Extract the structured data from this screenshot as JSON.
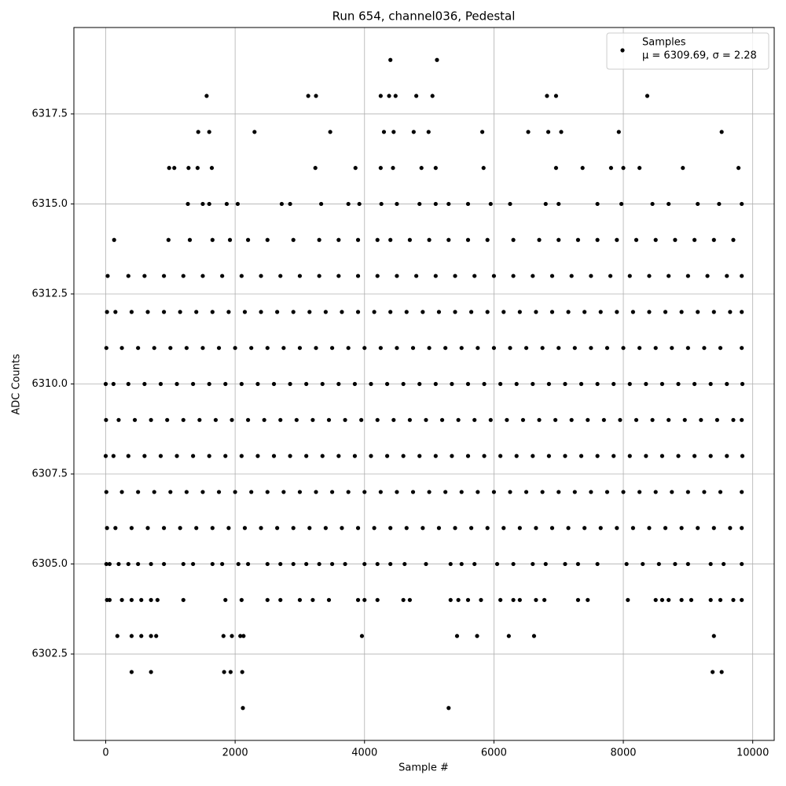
{
  "chart_data": {
    "type": "scatter",
    "title": "Run 654, channel036, Pedestal",
    "xlabel": "Sample #",
    "ylabel": "ADC Counts",
    "xlim": [
      -492,
      10332
    ],
    "ylim": [
      6300.1,
      6319.9
    ],
    "xticks": [
      0,
      2000,
      4000,
      6000,
      8000,
      10000
    ],
    "yticks": [
      6302.5,
      {
        "value": 6305,
        "label": "6305.0"
      },
      6307.5,
      {
        "value": 6310,
        "label": "6310.0"
      },
      6312.5,
      {
        "value": 6315,
        "label": "6315.0"
      },
      6317.5
    ],
    "grid": true,
    "legend": "upper right",
    "legend_note": "μ = 6309.69, σ = 2.28",
    "x": [
      4400,
      5120,
      1560,
      3130,
      3250,
      4250,
      4380,
      4480,
      4800,
      5050,
      6820,
      6960,
      8370,
      1430,
      1600,
      2300,
      3470,
      4300,
      4450,
      4760,
      4990,
      5820,
      6530,
      6840,
      7040,
      7930,
      9520,
      980,
      1060,
      1280,
      1420,
      1640,
      3240,
      3860,
      4250,
      4440,
      4880,
      5100,
      5840,
      6960,
      7370,
      7810,
      8000,
      8250,
      8920,
      9780,
      1270,
      1500,
      1600,
      1870,
      2040,
      2720,
      2850,
      3330,
      3750,
      3920,
      4260,
      4500,
      4850,
      5100,
      5300,
      5600,
      5950,
      6250,
      6800,
      7000,
      7600,
      7970,
      8450,
      8700,
      9150,
      9480,
      9830,
      130,
      970,
      1300,
      1650,
      1920,
      2200,
      2500,
      2900,
      3300,
      3600,
      3900,
      4200,
      4400,
      4700,
      5000,
      5300,
      5600,
      5900,
      6300,
      6700,
      7000,
      7300,
      7600,
      7900,
      8200,
      8500,
      8800,
      9100,
      9400,
      9700,
      30,
      350,
      600,
      900,
      1200,
      1500,
      1800,
      2100,
      2400,
      2700,
      3000,
      3300,
      3600,
      3900,
      4200,
      4500,
      4800,
      5100,
      5400,
      5700,
      6000,
      6300,
      6600,
      6900,
      7200,
      7500,
      7800,
      8100,
      8400,
      8700,
      9000,
      9300,
      9600,
      9830,
      20,
      150,
      400,
      650,
      900,
      1150,
      1400,
      1650,
      1900,
      2150,
      2400,
      2650,
      2900,
      3150,
      3400,
      3650,
      3900,
      4150,
      4400,
      4650,
      4900,
      5150,
      5400,
      5650,
      5900,
      6150,
      6400,
      6650,
      6900,
      7150,
      7400,
      7650,
      7900,
      8150,
      8400,
      8650,
      8900,
      9150,
      9400,
      9650,
      9830,
      10,
      250,
      500,
      750,
      1000,
      1250,
      1500,
      1750,
      2000,
      2250,
      2500,
      2750,
      3000,
      3250,
      3500,
      3750,
      4000,
      4250,
      4500,
      4750,
      5000,
      5250,
      5500,
      5750,
      6000,
      6250,
      6500,
      6750,
      7000,
      7250,
      7500,
      7750,
      8000,
      8250,
      8500,
      8750,
      9000,
      9250,
      9500,
      9830,
      0,
      120,
      350,
      600,
      850,
      1100,
      1350,
      1600,
      1850,
      2100,
      2350,
      2600,
      2850,
      3100,
      3350,
      3600,
      3850,
      4100,
      4350,
      4600,
      4850,
      5100,
      5350,
      5600,
      5850,
      6100,
      6350,
      6600,
      6850,
      7100,
      7350,
      7600,
      7850,
      8100,
      8350,
      8600,
      8850,
      9100,
      9350,
      9600,
      9840,
      5,
      200,
      450,
      700,
      950,
      1200,
      1450,
      1700,
      1950,
      2200,
      2450,
      2700,
      2950,
      3200,
      3450,
      3700,
      3950,
      4200,
      4450,
      4700,
      4950,
      5200,
      5450,
      5700,
      5950,
      6200,
      6450,
      6700,
      6950,
      7200,
      7450,
      7700,
      7950,
      8200,
      8450,
      8700,
      8950,
      9200,
      9450,
      9700,
      9830,
      0,
      120,
      350,
      600,
      850,
      1100,
      1350,
      1600,
      1850,
      2100,
      2350,
      2600,
      2850,
      3100,
      3350,
      3600,
      3850,
      4100,
      4350,
      4600,
      4850,
      5100,
      5350,
      5600,
      5850,
      6100,
      6350,
      6600,
      6850,
      7100,
      7350,
      7600,
      7850,
      8100,
      8350,
      8600,
      8850,
      9100,
      9350,
      9600,
      9840,
      10,
      250,
      500,
      750,
      1000,
      1250,
      1500,
      1750,
      2000,
      2250,
      2500,
      2750,
      3000,
      3250,
      3500,
      3750,
      4000,
      4250,
      4500,
      4750,
      5000,
      5250,
      5500,
      5750,
      6000,
      6250,
      6500,
      6750,
      7000,
      7250,
      7500,
      7750,
      8000,
      8250,
      8500,
      8750,
      9000,
      9250,
      9500,
      9830,
      20,
      150,
      400,
      650,
      900,
      1150,
      1400,
      1650,
      1900,
      2150,
      2400,
      2650,
      2900,
      3150,
      3400,
      3650,
      3900,
      4150,
      4400,
      4650,
      4900,
      5150,
      5400,
      5650,
      5900,
      6150,
      6400,
      6650,
      6900,
      7150,
      7400,
      7650,
      7900,
      8150,
      8400,
      8650,
      8900,
      9150,
      9400,
      9650,
      9830,
      10,
      60,
      200,
      350,
      500,
      700,
      900,
      1200,
      1350,
      1650,
      1800,
      2050,
      2200,
      2500,
      2700,
      2900,
      3100,
      3300,
      3500,
      3700,
      4000,
      4200,
      4400,
      4620,
      4950,
      5330,
      5500,
      5700,
      6050,
      6300,
      6600,
      6800,
      7100,
      7300,
      7600,
      8050,
      8300,
      8550,
      8800,
      9000,
      9350,
      9550,
      9830,
      20,
      60,
      250,
      400,
      550,
      700,
      800,
      1200,
      1850,
      2100,
      2500,
      2700,
      3000,
      3200,
      3450,
      3900,
      4000,
      4200,
      4600,
      4700,
      5330,
      5450,
      5600,
      5800,
      6100,
      6300,
      6400,
      6650,
      6780,
      7300,
      7450,
      8070,
      8500,
      8600,
      8700,
      8900,
      9050,
      9350,
      9500,
      9700,
      9830,
      180,
      400,
      550,
      700,
      780,
      1820,
      1950,
      2080,
      2130,
      3960,
      5430,
      5740,
      6230,
      6620,
      9400,
      400,
      700,
      1830,
      1930,
      2110,
      9380,
      9520,
      2120,
      5300
    ],
    "series": [
      {
        "name": "Samples",
        "color": "#000000",
        "values": [
          6319,
          6319,
          6318,
          6318,
          6318,
          6318,
          6318,
          6318,
          6318,
          6318,
          6318,
          6318,
          6318,
          6317,
          6317,
          6317,
          6317,
          6317,
          6317,
          6317,
          6317,
          6317,
          6317,
          6317,
          6317,
          6317,
          6317,
          6316,
          6316,
          6316,
          6316,
          6316,
          6316,
          6316,
          6316,
          6316,
          6316,
          6316,
          6316,
          6316,
          6316,
          6316,
          6316,
          6316,
          6316,
          6316,
          6315,
          6315,
          6315,
          6315,
          6315,
          6315,
          6315,
          6315,
          6315,
          6315,
          6315,
          6315,
          6315,
          6315,
          6315,
          6315,
          6315,
          6315,
          6315,
          6315,
          6315,
          6315,
          6315,
          6315,
          6315,
          6315,
          6315,
          6314,
          6314,
          6314,
          6314,
          6314,
          6314,
          6314,
          6314,
          6314,
          6314,
          6314,
          6314,
          6314,
          6314,
          6314,
          6314,
          6314,
          6314,
          6314,
          6314,
          6314,
          6314,
          6314,
          6314,
          6314,
          6314,
          6314,
          6314,
          6314,
          6314,
          6313,
          6313,
          6313,
          6313,
          6313,
          6313,
          6313,
          6313,
          6313,
          6313,
          6313,
          6313,
          6313,
          6313,
          6313,
          6313,
          6313,
          6313,
          6313,
          6313,
          6313,
          6313,
          6313,
          6313,
          6313,
          6313,
          6313,
          6313,
          6313,
          6313,
          6313,
          6313,
          6313,
          6313,
          6312,
          6312,
          6312,
          6312,
          6312,
          6312,
          6312,
          6312,
          6312,
          6312,
          6312,
          6312,
          6312,
          6312,
          6312,
          6312,
          6312,
          6312,
          6312,
          6312,
          6312,
          6312,
          6312,
          6312,
          6312,
          6312,
          6312,
          6312,
          6312,
          6312,
          6312,
          6312,
          6312,
          6312,
          6312,
          6312,
          6312,
          6312,
          6312,
          6312,
          6312,
          6311,
          6311,
          6311,
          6311,
          6311,
          6311,
          6311,
          6311,
          6311,
          6311,
          6311,
          6311,
          6311,
          6311,
          6311,
          6311,
          6311,
          6311,
          6311,
          6311,
          6311,
          6311,
          6311,
          6311,
          6311,
          6311,
          6311,
          6311,
          6311,
          6311,
          6311,
          6311,
          6311,
          6311,
          6311,
          6311,
          6311,
          6311,
          6311,
          6311,
          6310,
          6310,
          6310,
          6310,
          6310,
          6310,
          6310,
          6310,
          6310,
          6310,
          6310,
          6310,
          6310,
          6310,
          6310,
          6310,
          6310,
          6310,
          6310,
          6310,
          6310,
          6310,
          6310,
          6310,
          6310,
          6310,
          6310,
          6310,
          6310,
          6310,
          6310,
          6310,
          6310,
          6310,
          6310,
          6310,
          6310,
          6310,
          6310,
          6310,
          6310,
          6309,
          6309,
          6309,
          6309,
          6309,
          6309,
          6309,
          6309,
          6309,
          6309,
          6309,
          6309,
          6309,
          6309,
          6309,
          6309,
          6309,
          6309,
          6309,
          6309,
          6309,
          6309,
          6309,
          6309,
          6309,
          6309,
          6309,
          6309,
          6309,
          6309,
          6309,
          6309,
          6309,
          6309,
          6309,
          6309,
          6309,
          6309,
          6309,
          6309,
          6309,
          6308,
          6308,
          6308,
          6308,
          6308,
          6308,
          6308,
          6308,
          6308,
          6308,
          6308,
          6308,
          6308,
          6308,
          6308,
          6308,
          6308,
          6308,
          6308,
          6308,
          6308,
          6308,
          6308,
          6308,
          6308,
          6308,
          6308,
          6308,
          6308,
          6308,
          6308,
          6308,
          6308,
          6308,
          6308,
          6308,
          6308,
          6308,
          6308,
          6308,
          6308,
          6307,
          6307,
          6307,
          6307,
          6307,
          6307,
          6307,
          6307,
          6307,
          6307,
          6307,
          6307,
          6307,
          6307,
          6307,
          6307,
          6307,
          6307,
          6307,
          6307,
          6307,
          6307,
          6307,
          6307,
          6307,
          6307,
          6307,
          6307,
          6307,
          6307,
          6307,
          6307,
          6307,
          6307,
          6307,
          6307,
          6307,
          6307,
          6307,
          6307,
          6306,
          6306,
          6306,
          6306,
          6306,
          6306,
          6306,
          6306,
          6306,
          6306,
          6306,
          6306,
          6306,
          6306,
          6306,
          6306,
          6306,
          6306,
          6306,
          6306,
          6306,
          6306,
          6306,
          6306,
          6306,
          6306,
          6306,
          6306,
          6306,
          6306,
          6306,
          6306,
          6306,
          6306,
          6306,
          6306,
          6306,
          6306,
          6306,
          6306,
          6306,
          6305,
          6305,
          6305,
          6305,
          6305,
          6305,
          6305,
          6305,
          6305,
          6305,
          6305,
          6305,
          6305,
          6305,
          6305,
          6305,
          6305,
          6305,
          6305,
          6305,
          6305,
          6305,
          6305,
          6305,
          6305,
          6305,
          6305,
          6305,
          6305,
          6305,
          6305,
          6305,
          6305,
          6305,
          6305,
          6305,
          6305,
          6305,
          6305,
          6305,
          6305,
          6305,
          6305,
          6304,
          6304,
          6304,
          6304,
          6304,
          6304,
          6304,
          6304,
          6304,
          6304,
          6304,
          6304,
          6304,
          6304,
          6304,
          6304,
          6304,
          6304,
          6304,
          6304,
          6304,
          6304,
          6304,
          6304,
          6304,
          6304,
          6304,
          6304,
          6304,
          6304,
          6304,
          6304,
          6304,
          6304,
          6304,
          6304,
          6304,
          6304,
          6304,
          6304,
          6304,
          6303,
          6303,
          6303,
          6303,
          6303,
          6303,
          6303,
          6303,
          6303,
          6303,
          6303,
          6303,
          6303,
          6303,
          6303,
          6302,
          6302,
          6302,
          6302,
          6302,
          6302,
          6302,
          6301,
          6301
        ]
      }
    ]
  }
}
